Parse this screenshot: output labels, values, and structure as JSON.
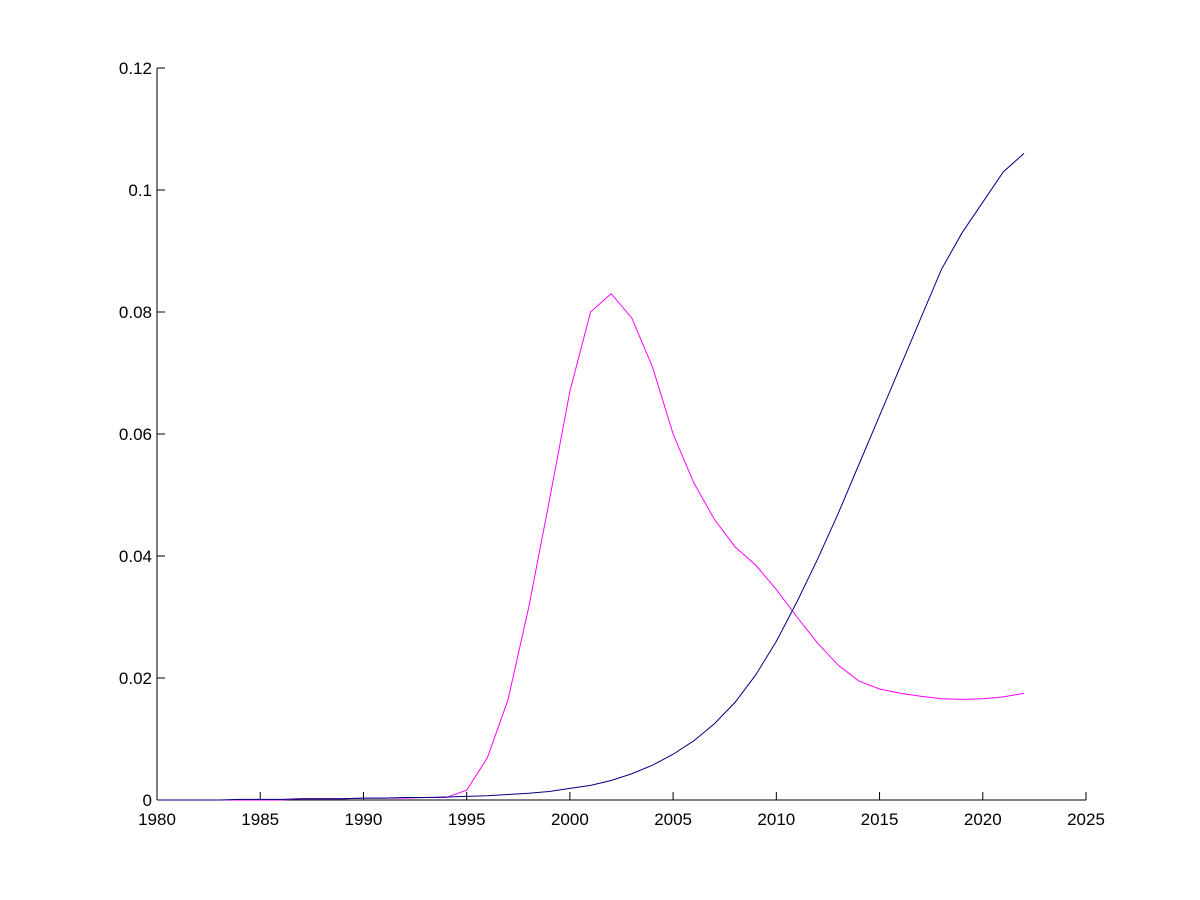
{
  "chart_data": {
    "type": "line",
    "x": [
      1980,
      1981,
      1982,
      1983,
      1984,
      1985,
      1986,
      1987,
      1988,
      1989,
      1990,
      1991,
      1992,
      1993,
      1994,
      1995,
      1996,
      1997,
      1998,
      1999,
      2000,
      2001,
      2002,
      2003,
      2004,
      2005,
      2006,
      2007,
      2008,
      2009,
      2010,
      2011,
      2012,
      2013,
      2014,
      2015,
      2016,
      2017,
      2018,
      2019,
      2020,
      2021,
      2022
    ],
    "series": [
      {
        "color": "#ff00ff",
        "values": [
          0,
          0,
          0,
          0,
          0,
          0,
          0,
          0.0002,
          0.0002,
          0.0002,
          0.0003,
          0.0003,
          0.0003,
          0.0004,
          0.0004,
          0.0016,
          0.0069,
          0.0164,
          0.0315,
          0.049,
          0.067,
          0.08,
          0.083,
          0.079,
          0.071,
          0.06,
          0.052,
          0.046,
          0.0415,
          0.0385,
          0.0345,
          0.03,
          0.0257,
          0.0221,
          0.0195,
          0.0182,
          0.0175,
          0.017,
          0.0166,
          0.0165,
          0.0166,
          0.0169,
          0.0175
        ]
      },
      {
        "color": "#000080",
        "values": [
          0,
          0,
          0,
          0,
          0.0001,
          0.0001,
          0.0001,
          0.0002,
          0.0002,
          0.0002,
          0.0003,
          0.0003,
          0.0004,
          0.0004,
          0.0005,
          0.0006,
          0.0007,
          0.0009,
          0.0011,
          0.0014,
          0.0019,
          0.0024,
          0.0032,
          0.0043,
          0.0057,
          0.0075,
          0.0097,
          0.0125,
          0.016,
          0.0205,
          0.026,
          0.0325,
          0.0395,
          0.047,
          0.055,
          0.063,
          0.071,
          0.079,
          0.087,
          0.093,
          0.098,
          0.103,
          0.106
        ]
      }
    ],
    "xlim": [
      1980,
      2025
    ],
    "xticks": [
      1980,
      1985,
      1990,
      1995,
      2000,
      2005,
      2010,
      2015,
      2020,
      2025
    ],
    "ylim": [
      0,
      0.12
    ],
    "yticks": [
      0,
      0.02,
      0.04,
      0.06,
      0.08,
      0.1,
      0.12
    ]
  }
}
